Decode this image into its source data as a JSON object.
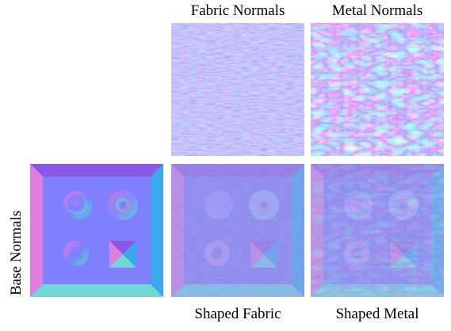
{
  "figure": {
    "col_labels": [
      "Fabric Normals",
      "Metal Normals"
    ],
    "row_label": "Base Normals",
    "bottom_labels": [
      "Shaped Fabric",
      "Shaped Metal"
    ]
  },
  "palette": {
    "normal_base": "#8080ff",
    "normal_blue": "#7f7ff6",
    "normal_purple": "#8a57e6",
    "normal_cyan": "#70d8d6",
    "normal_pink": "#dd7ee0",
    "normal_sky": "#3aa7ef"
  }
}
